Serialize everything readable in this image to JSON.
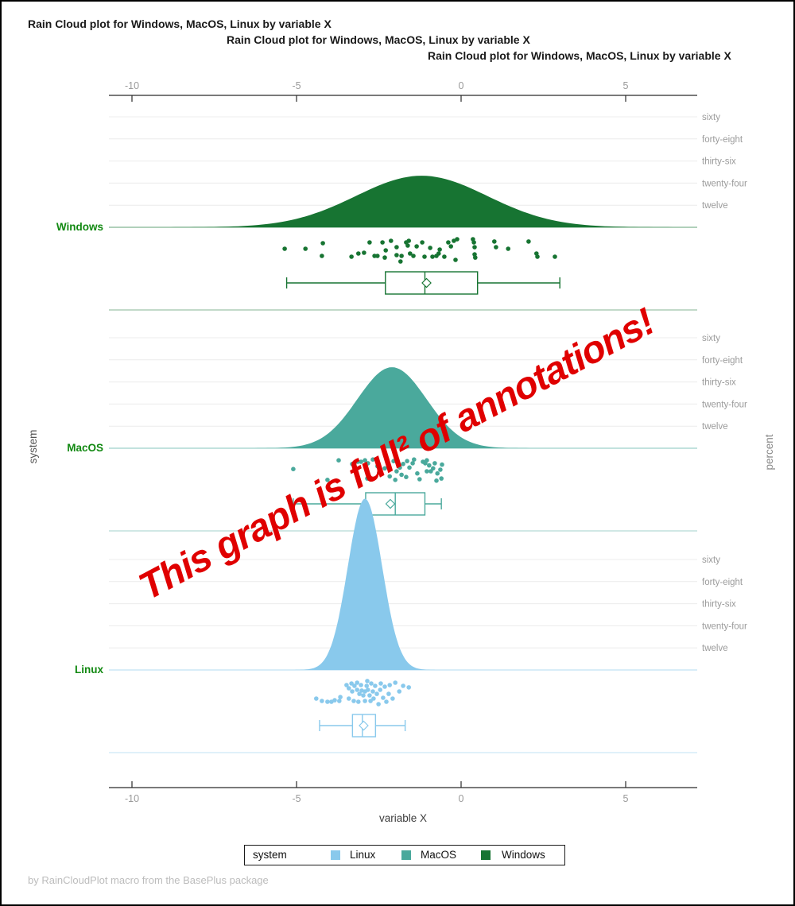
{
  "titles": [
    "Rain Cloud plot for Windows, MacOS, Linux by variable X",
    "Rain Cloud plot for Windows, MacOS, Linux by variable X",
    "Rain Cloud plot for Windows, MacOS, Linux by variable X"
  ],
  "footer": "by RainCloudPlot macro from the BasePlus package",
  "annotation": {
    "text": "This graph is full² of annotations!",
    "color": "#e00000"
  },
  "axes": {
    "x_label": "variable X",
    "left_label": "system",
    "right_label": "percent",
    "x_ticks": [
      "-10",
      "-5",
      "0",
      "5"
    ],
    "percent_tick_labels": [
      "sixty",
      "forty-eight",
      "thirty-six",
      "twenty-four",
      "twelve"
    ]
  },
  "legend": {
    "title": "system",
    "items": [
      {
        "label": "Linux",
        "color": "#89c9ec"
      },
      {
        "label": "MacOS",
        "color": "#4aa99c"
      },
      {
        "label": "Windows",
        "color": "#177432"
      }
    ]
  },
  "colors": {
    "grid": "#ececec",
    "axis": "#2a2a2a",
    "tick_label": "#9a9a9a",
    "right_label": "#9b9b9b",
    "group_label_green": "#128912",
    "left_axis_title": "#555555",
    "right_axis_title": "#8a8a8a"
  },
  "chart_data": {
    "type": "raincloud (half-violin density + jittered scatter + boxplot with mean diamond)",
    "title": "Rain Cloud plot for Windows, MacOS, Linux by variable X",
    "xlabel": "variable X",
    "x_ticks": [
      -10,
      -5,
      0,
      5
    ],
    "x_range_shown": [
      -10.7,
      7.2
    ],
    "percent_gridline_values": [
      60,
      48,
      36,
      24,
      12
    ],
    "percent_gridline_labels": [
      "sixty",
      "forty-eight",
      "thirty-six",
      "twenty-four",
      "twelve"
    ],
    "groups": [
      {
        "name": "Windows",
        "color": "#177432",
        "density": {
          "mean": -1.2,
          "sd": 2.0,
          "peak_percent": 28
        },
        "box": {
          "whisker_low": -5.3,
          "q1": -2.3,
          "median": -1.1,
          "q3": 0.5,
          "whisker_high": 3.0,
          "mean_marker": -1.05
        },
        "points": [
          [
            -5.36,
            -0.06
          ],
          [
            -4.73,
            -0.06
          ],
          [
            -4.2,
            -0.5
          ],
          [
            -4.23,
            0.5
          ],
          [
            -3.33,
            0.56
          ],
          [
            -3.12,
            0.31
          ],
          [
            -2.95,
            0.25
          ],
          [
            -2.78,
            -0.56
          ],
          [
            -2.63,
            0.5
          ],
          [
            -2.54,
            0.5
          ],
          [
            -2.39,
            -0.56
          ],
          [
            -2.32,
            0.63
          ],
          [
            -2.29,
            0.06
          ],
          [
            -2.13,
            -0.69
          ],
          [
            -1.96,
            -0.19
          ],
          [
            -1.96,
            0.44
          ],
          [
            -1.84,
            0.94
          ],
          [
            -1.81,
            0.5
          ],
          [
            -1.67,
            -0.56
          ],
          [
            -1.62,
            -0.31
          ],
          [
            -1.59,
            -0.69
          ],
          [
            -1.55,
            0.31
          ],
          [
            -1.45,
            0.5
          ],
          [
            -1.35,
            -0.25
          ],
          [
            -1.18,
            -0.56
          ],
          [
            -1.11,
            0.56
          ],
          [
            -0.94,
            -0.13
          ],
          [
            -0.87,
            0.56
          ],
          [
            -0.75,
            0.5
          ],
          [
            -0.68,
            0.31
          ],
          [
            -0.65,
            0.0
          ],
          [
            -0.51,
            0.56
          ],
          [
            -0.39,
            -0.56
          ],
          [
            -0.31,
            -0.25
          ],
          [
            -0.22,
            -0.69
          ],
          [
            -0.17,
            0.81
          ],
          [
            -0.12,
            -0.81
          ],
          [
            0.36,
            -0.81
          ],
          [
            0.39,
            -0.56
          ],
          [
            0.41,
            -0.19
          ],
          [
            0.41,
            0.38
          ],
          [
            0.43,
            0.63
          ],
          [
            1.01,
            -0.63
          ],
          [
            1.06,
            -0.19
          ],
          [
            1.43,
            -0.06
          ],
          [
            2.05,
            -0.63
          ],
          [
            2.29,
            0.31
          ],
          [
            2.32,
            0.56
          ],
          [
            2.85,
            0.56
          ]
        ]
      },
      {
        "name": "MacOS",
        "color": "#4aa99c",
        "density": {
          "mean": -2.1,
          "sd": 1.05,
          "peak_percent": 44
        },
        "box": {
          "whisker_low": -5.1,
          "q1": -2.9,
          "median": -2.0,
          "q3": -1.1,
          "whisker_high": -0.6,
          "mean_marker": -2.15
        },
        "points": [
          [
            -5.1,
            -0.11
          ],
          [
            -4.06,
            0.74
          ],
          [
            -3.72,
            -0.8
          ],
          [
            -3.31,
            -0.51
          ],
          [
            -3.14,
            -0.69
          ],
          [
            -3.04,
            -0.69
          ],
          [
            -2.92,
            -0.8
          ],
          [
            -2.85,
            0.63
          ],
          [
            -2.83,
            -0.57
          ],
          [
            -2.68,
            -0.86
          ],
          [
            -2.54,
            -0.34
          ],
          [
            -2.49,
            0.17
          ],
          [
            -2.32,
            -0.17
          ],
          [
            -2.17,
            0.46
          ],
          [
            -2.05,
            -0.74
          ],
          [
            -2.0,
            0.74
          ],
          [
            -1.96,
            -0.86
          ],
          [
            -1.96,
            0.06
          ],
          [
            -1.86,
            -0.23
          ],
          [
            -1.81,
            0.34
          ],
          [
            -1.76,
            -0.51
          ],
          [
            -1.67,
            0.51
          ],
          [
            -1.64,
            -0.74
          ],
          [
            -1.57,
            -0.23
          ],
          [
            -1.47,
            -0.57
          ],
          [
            -1.43,
            -0.86
          ],
          [
            -1.33,
            0.23
          ],
          [
            -1.26,
            0.69
          ],
          [
            -1.16,
            -0.69
          ],
          [
            -1.09,
            -0.57
          ],
          [
            -1.04,
            -0.8
          ],
          [
            -1.04,
            0.06
          ],
          [
            -0.97,
            -0.4
          ],
          [
            -0.92,
            0.06
          ],
          [
            -0.85,
            -0.17
          ],
          [
            -0.8,
            -0.57
          ],
          [
            -0.75,
            0.8
          ],
          [
            -0.72,
            0.23
          ],
          [
            -0.63,
            -0.06
          ],
          [
            -0.6,
            0.63
          ],
          [
            -0.58,
            -0.46
          ]
        ]
      },
      {
        "name": "Linux",
        "color": "#89c9ec",
        "density": {
          "mean": -2.92,
          "sd": 0.52,
          "peak_percent": 93
        },
        "box": {
          "whisker_low": -4.3,
          "q1": -3.3,
          "median": -3.0,
          "q3": -2.6,
          "whisker_high": -1.7,
          "mean_marker": -2.96
        },
        "points": [
          [
            -4.4,
            0.5
          ],
          [
            -4.23,
            0.69
          ],
          [
            -4.06,
            0.75
          ],
          [
            -3.94,
            0.75
          ],
          [
            -3.84,
            0.63
          ],
          [
            -3.7,
            0.69
          ],
          [
            -3.67,
            0.38
          ],
          [
            -3.48,
            -0.56
          ],
          [
            -3.41,
            -0.31
          ],
          [
            -3.41,
            0.5
          ],
          [
            -3.33,
            -0.69
          ],
          [
            -3.31,
            -0.06
          ],
          [
            -3.26,
            0.69
          ],
          [
            -3.24,
            -0.5
          ],
          [
            -3.16,
            -0.75
          ],
          [
            -3.16,
            -0.19
          ],
          [
            -3.12,
            0.75
          ],
          [
            -3.09,
            0.13
          ],
          [
            -3.04,
            -0.56
          ],
          [
            -3.02,
            -0.13
          ],
          [
            -2.97,
            0.25
          ],
          [
            -2.92,
            0.69
          ],
          [
            -2.92,
            -0.06
          ],
          [
            -2.87,
            -0.5
          ],
          [
            -2.85,
            -0.88
          ],
          [
            -2.83,
            -0.19
          ],
          [
            -2.78,
            0.25
          ],
          [
            -2.75,
            0.69
          ],
          [
            -2.73,
            -0.69
          ],
          [
            -2.68,
            -0.06
          ],
          [
            -2.66,
            0.5
          ],
          [
            -2.61,
            -0.5
          ],
          [
            -2.56,
            0.13
          ],
          [
            -2.51,
            0.94
          ],
          [
            -2.46,
            -0.19
          ],
          [
            -2.44,
            -0.69
          ],
          [
            -2.37,
            0.44
          ],
          [
            -2.32,
            -0.44
          ],
          [
            -2.27,
            0.75
          ],
          [
            -2.2,
            0.13
          ],
          [
            -2.17,
            -0.56
          ],
          [
            -2.08,
            0.5
          ],
          [
            -2.0,
            -0.75
          ],
          [
            -1.88,
            -0.06
          ],
          [
            -1.76,
            -0.5
          ],
          [
            -1.59,
            -0.38
          ]
        ]
      }
    ]
  }
}
